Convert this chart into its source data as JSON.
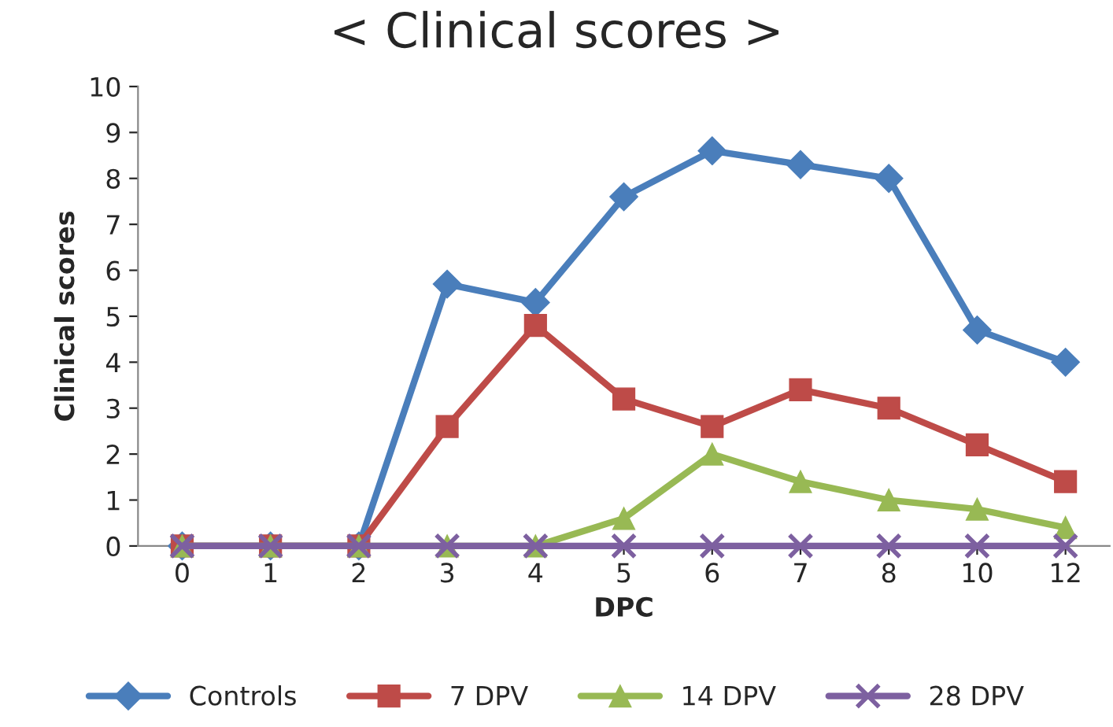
{
  "chart_data": {
    "type": "line",
    "title": "< Clinical scores >",
    "xlabel": "DPC",
    "ylabel": "Clinical scores",
    "categories": [
      "0",
      "1",
      "2",
      "3",
      "4",
      "5",
      "6",
      "7",
      "8",
      "10",
      "12"
    ],
    "series": [
      {
        "name": "Controls",
        "color": "#4a7ebb",
        "marker": "diamond",
        "values": [
          0,
          0,
          0,
          5.7,
          5.3,
          7.6,
          8.6,
          8.3,
          8.0,
          4.7,
          4.0
        ]
      },
      {
        "name": "7 DPV",
        "color": "#be4b48",
        "marker": "square",
        "values": [
          0,
          0,
          0,
          2.6,
          4.8,
          3.2,
          2.6,
          3.4,
          3.0,
          2.2,
          1.4
        ]
      },
      {
        "name": "14 DPV",
        "color": "#98b954",
        "marker": "triangle",
        "values": [
          0,
          0,
          0,
          0,
          0,
          0.6,
          2.0,
          1.4,
          1.0,
          0.8,
          0.4
        ]
      },
      {
        "name": "28 DPV",
        "color": "#7d60a0",
        "marker": "cross",
        "values": [
          0,
          0,
          0,
          0,
          0,
          0,
          0,
          0,
          0,
          0,
          0
        ]
      }
    ],
    "ylim": [
      0,
      10
    ],
    "yticks": [
      0,
      1,
      2,
      3,
      4,
      5,
      6,
      7,
      8,
      9,
      10
    ],
    "grid": false,
    "legend": "bottom",
    "line_style": "solid"
  }
}
